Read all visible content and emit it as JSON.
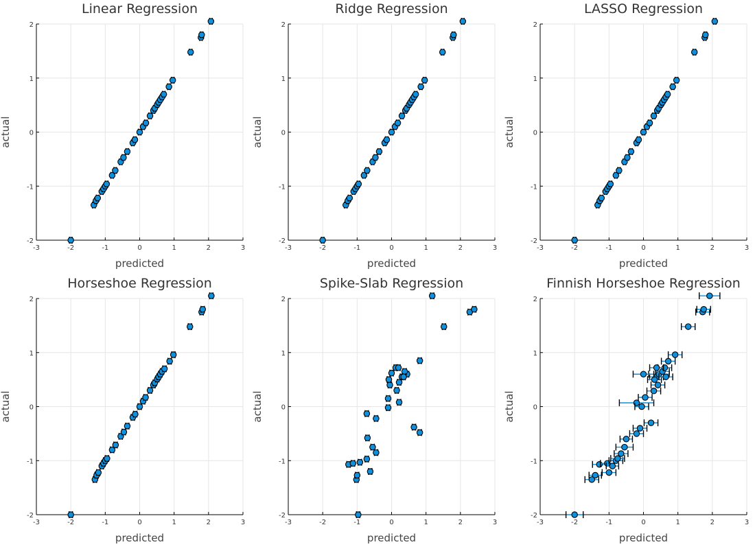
{
  "figure": {
    "background": "#ffffff"
  },
  "chart_data": [
    {
      "type": "scatter",
      "title": "Linear Regression",
      "xlabel": "predicted",
      "ylabel": "actual",
      "xlim": [
        -3,
        3
      ],
      "ylim": [
        -2,
        2
      ],
      "xticks": [
        "-3",
        "-2",
        "-1",
        "0",
        "1",
        "2",
        "3"
      ],
      "yticks": [
        "-2",
        "-1",
        "0",
        "1",
        "2"
      ],
      "grid": true,
      "series": [
        {
          "name": "y1",
          "color": "#0f8fdc",
          "x": [
            -2.0,
            -1.33,
            -1.27,
            -1.22,
            -1.1,
            -1.05,
            -1.0,
            -0.96,
            -0.8,
            -0.71,
            -0.55,
            -0.47,
            -0.36,
            -0.2,
            -0.14,
            0.0,
            0.1,
            0.18,
            0.3,
            0.4,
            0.44,
            0.51,
            0.55,
            0.6,
            0.65,
            0.7,
            0.85,
            0.96,
            1.48,
            1.78,
            1.8,
            2.07
          ],
          "y": [
            -2.0,
            -1.35,
            -1.27,
            -1.22,
            -1.1,
            -1.05,
            -1.0,
            -0.96,
            -0.8,
            -0.71,
            -0.55,
            -0.47,
            -0.36,
            -0.2,
            -0.14,
            0.0,
            0.1,
            0.17,
            0.3,
            0.4,
            0.44,
            0.51,
            0.55,
            0.6,
            0.65,
            0.7,
            0.84,
            0.96,
            1.48,
            1.75,
            1.8,
            2.05
          ],
          "xerr": [
            0.04,
            0.04,
            0.04,
            0.04,
            0.04,
            0.04,
            0.04,
            0.04,
            0.04,
            0.04,
            0.04,
            0.04,
            0.04,
            0.04,
            0.04,
            0.04,
            0.04,
            0.04,
            0.04,
            0.04,
            0.04,
            0.04,
            0.04,
            0.04,
            0.04,
            0.04,
            0.04,
            0.04,
            0.04,
            0.04,
            0.04,
            0.04
          ]
        }
      ]
    },
    {
      "type": "scatter",
      "title": "Ridge Regression",
      "xlabel": "predicted",
      "ylabel": "actual",
      "xlim": [
        -3,
        3
      ],
      "ylim": [
        -2,
        2
      ],
      "xticks": [
        "-3",
        "-2",
        "-1",
        "0",
        "1",
        "2",
        "3"
      ],
      "yticks": [
        "-2",
        "-1",
        "0",
        "1",
        "2"
      ],
      "grid": true,
      "series": [
        {
          "name": "y1",
          "color": "#0f8fdc",
          "x": [
            -2.0,
            -1.33,
            -1.27,
            -1.22,
            -1.1,
            -1.05,
            -1.0,
            -0.96,
            -0.8,
            -0.71,
            -0.55,
            -0.47,
            -0.36,
            -0.2,
            -0.14,
            0.0,
            0.1,
            0.18,
            0.3,
            0.4,
            0.44,
            0.51,
            0.55,
            0.6,
            0.65,
            0.7,
            0.85,
            0.96,
            1.48,
            1.78,
            1.8,
            2.07
          ],
          "y": [
            -2.0,
            -1.35,
            -1.27,
            -1.22,
            -1.1,
            -1.05,
            -1.0,
            -0.96,
            -0.8,
            -0.71,
            -0.55,
            -0.47,
            -0.36,
            -0.2,
            -0.14,
            0.0,
            0.1,
            0.17,
            0.3,
            0.4,
            0.44,
            0.51,
            0.55,
            0.6,
            0.65,
            0.7,
            0.84,
            0.96,
            1.48,
            1.75,
            1.8,
            2.05
          ],
          "xerr": [
            0.04,
            0.04,
            0.04,
            0.04,
            0.04,
            0.04,
            0.04,
            0.04,
            0.04,
            0.04,
            0.04,
            0.04,
            0.04,
            0.04,
            0.04,
            0.04,
            0.04,
            0.04,
            0.04,
            0.04,
            0.04,
            0.04,
            0.04,
            0.04,
            0.04,
            0.04,
            0.04,
            0.04,
            0.04,
            0.04,
            0.04,
            0.04
          ]
        }
      ]
    },
    {
      "type": "scatter",
      "title": "LASSO Regression",
      "xlabel": "predicted",
      "ylabel": "actual",
      "xlim": [
        -3,
        3
      ],
      "ylim": [
        -2,
        2
      ],
      "xticks": [
        "-3",
        "-2",
        "-1",
        "0",
        "1",
        "2",
        "3"
      ],
      "yticks": [
        "-2",
        "-1",
        "0",
        "1",
        "2"
      ],
      "grid": true,
      "series": [
        {
          "name": "y1",
          "color": "#0f8fdc",
          "x": [
            -2.0,
            -1.33,
            -1.27,
            -1.22,
            -1.1,
            -1.05,
            -1.0,
            -0.96,
            -0.8,
            -0.71,
            -0.55,
            -0.47,
            -0.36,
            -0.2,
            -0.14,
            0.0,
            0.1,
            0.18,
            0.3,
            0.4,
            0.44,
            0.51,
            0.55,
            0.6,
            0.65,
            0.7,
            0.85,
            0.96,
            1.48,
            1.78,
            1.8,
            2.07
          ],
          "y": [
            -2.0,
            -1.35,
            -1.27,
            -1.22,
            -1.1,
            -1.05,
            -1.0,
            -0.96,
            -0.8,
            -0.71,
            -0.55,
            -0.47,
            -0.36,
            -0.2,
            -0.14,
            0.0,
            0.1,
            0.17,
            0.3,
            0.4,
            0.44,
            0.51,
            0.55,
            0.6,
            0.65,
            0.7,
            0.84,
            0.96,
            1.48,
            1.75,
            1.8,
            2.05
          ],
          "xerr": [
            0.04,
            0.04,
            0.04,
            0.04,
            0.04,
            0.04,
            0.04,
            0.04,
            0.04,
            0.04,
            0.04,
            0.04,
            0.04,
            0.04,
            0.04,
            0.04,
            0.04,
            0.04,
            0.04,
            0.04,
            0.04,
            0.04,
            0.04,
            0.04,
            0.04,
            0.04,
            0.04,
            0.04,
            0.04,
            0.04,
            0.04,
            0.04
          ]
        }
      ]
    },
    {
      "type": "scatter",
      "title": "Horseshoe Regression",
      "xlabel": "predicted",
      "ylabel": "actual",
      "xlim": [
        -3,
        3
      ],
      "ylim": [
        -2,
        2
      ],
      "xticks": [
        "-3",
        "-2",
        "-1",
        "0",
        "1",
        "2",
        "3"
      ],
      "yticks": [
        "-2",
        "-1",
        "0",
        "1",
        "2"
      ],
      "grid": true,
      "series": [
        {
          "name": "y1",
          "color": "#0f8fdc",
          "x": [
            -2.0,
            -1.3,
            -1.25,
            -1.2,
            -1.1,
            -1.05,
            -1.0,
            -0.95,
            -0.8,
            -0.7,
            -0.55,
            -0.46,
            -0.36,
            -0.2,
            -0.13,
            0.0,
            0.1,
            0.17,
            0.3,
            0.4,
            0.44,
            0.51,
            0.55,
            0.6,
            0.65,
            0.72,
            0.87,
            0.98,
            1.46,
            1.8,
            1.83,
            2.08
          ],
          "y": [
            -2.0,
            -1.35,
            -1.27,
            -1.22,
            -1.1,
            -1.05,
            -1.0,
            -0.96,
            -0.8,
            -0.71,
            -0.55,
            -0.47,
            -0.36,
            -0.2,
            -0.14,
            0.0,
            0.1,
            0.17,
            0.3,
            0.4,
            0.44,
            0.51,
            0.55,
            0.6,
            0.65,
            0.7,
            0.84,
            0.96,
            1.48,
            1.75,
            1.8,
            2.05
          ],
          "xerr": [
            0.05,
            0.05,
            0.05,
            0.05,
            0.05,
            0.05,
            0.05,
            0.05,
            0.05,
            0.05,
            0.05,
            0.05,
            0.05,
            0.05,
            0.05,
            0.05,
            0.05,
            0.05,
            0.05,
            0.05,
            0.05,
            0.05,
            0.05,
            0.05,
            0.05,
            0.05,
            0.05,
            0.05,
            0.05,
            0.05,
            0.05,
            0.05
          ]
        }
      ]
    },
    {
      "type": "scatter",
      "title": "Spike-Slab Regression",
      "xlabel": "predicted",
      "ylabel": "actual",
      "xlim": [
        -3,
        3
      ],
      "ylim": [
        -2,
        2
      ],
      "xticks": [
        "-3",
        "-2",
        "-1",
        "0",
        "1",
        "2",
        "3"
      ],
      "yticks": [
        "-2",
        "-1",
        "0",
        "1",
        "2"
      ],
      "grid": true,
      "series": [
        {
          "name": "y1",
          "color": "#0f8fdc",
          "x": [
            -0.97,
            -1.02,
            -1.0,
            -1.25,
            -1.12,
            -0.92,
            -0.62,
            -0.72,
            -0.45,
            -0.55,
            -0.7,
            -0.45,
            -0.72,
            -0.1,
            -0.1,
            0.15,
            0.22,
            0.3,
            -0.05,
            0.12,
            -0.08,
            0.22,
            0.45,
            0.38,
            0.35,
            0.0,
            0.2,
            0.65,
            0.82,
            0.82,
            1.52,
            2.27,
            2.4,
            1.18
          ],
          "y": [
            -2.0,
            -1.35,
            -1.27,
            -1.07,
            -1.05,
            -1.03,
            -1.2,
            -0.97,
            -0.85,
            -0.75,
            -0.58,
            -0.22,
            -0.13,
            -0.02,
            0.15,
            0.3,
            0.08,
            0.55,
            0.4,
            0.72,
            0.5,
            0.45,
            0.6,
            0.65,
            0.55,
            0.62,
            0.72,
            -0.38,
            -0.48,
            0.85,
            1.48,
            1.75,
            1.8,
            2.05
          ],
          "xerr": [
            0.05,
            0.05,
            0.05,
            0.05,
            0.05,
            0.05,
            0.05,
            0.05,
            0.05,
            0.05,
            0.05,
            0.05,
            0.05,
            0.05,
            0.05,
            0.05,
            0.05,
            0.05,
            0.05,
            0.05,
            0.05,
            0.05,
            0.05,
            0.05,
            0.05,
            0.05,
            0.05,
            0.05,
            0.05,
            0.05,
            0.05,
            0.05,
            0.05,
            0.05
          ]
        }
      ]
    },
    {
      "type": "scatter",
      "title": "Finnish Horseshoe Regression",
      "xlabel": "predicted",
      "ylabel": "actual",
      "xlim": [
        -3,
        3
      ],
      "ylim": [
        -2,
        2
      ],
      "xticks": [
        "-3",
        "-2",
        "-1",
        "0",
        "1",
        "2",
        "3"
      ],
      "yticks": [
        "-2",
        "-1",
        "0",
        "1",
        "2"
      ],
      "grid": true,
      "series": [
        {
          "name": "y1",
          "color": "#0f8fdc",
          "x": [
            -2.0,
            -1.5,
            -1.4,
            -1.28,
            -1.05,
            -1.0,
            -0.9,
            -0.8,
            -0.75,
            -0.65,
            -0.55,
            -0.5,
            -0.2,
            -0.1,
            -0.2,
            0.05,
            -0.05,
            0.3,
            0.42,
            0.38,
            0.45,
            0.32,
            0.0,
            0.22,
            0.55,
            0.65,
            0.62,
            0.38,
            0.72,
            0.92,
            1.3,
            1.72,
            1.75,
            1.92
          ],
          "y": [
            -2.0,
            -1.35,
            -1.27,
            -1.07,
            -1.05,
            -1.22,
            -1.1,
            -1.0,
            -0.96,
            -0.87,
            -0.75,
            -0.6,
            -0.5,
            -0.4,
            0.07,
            0.17,
            0.0,
            0.29,
            0.4,
            0.55,
            0.6,
            0.5,
            0.6,
            -0.3,
            0.65,
            0.55,
            0.72,
            0.72,
            0.84,
            0.96,
            1.48,
            1.75,
            1.8,
            2.05
          ],
          "xerr": [
            0.25,
            0.2,
            0.18,
            0.2,
            0.2,
            0.2,
            0.18,
            0.2,
            0.2,
            0.2,
            0.25,
            0.18,
            0.2,
            0.2,
            0.5,
            0.2,
            0.2,
            0.2,
            0.2,
            0.2,
            0.3,
            0.2,
            0.3,
            0.2,
            0.2,
            0.2,
            0.2,
            0.2,
            0.2,
            0.2,
            0.2,
            0.2,
            0.2,
            0.3
          ]
        }
      ]
    }
  ]
}
